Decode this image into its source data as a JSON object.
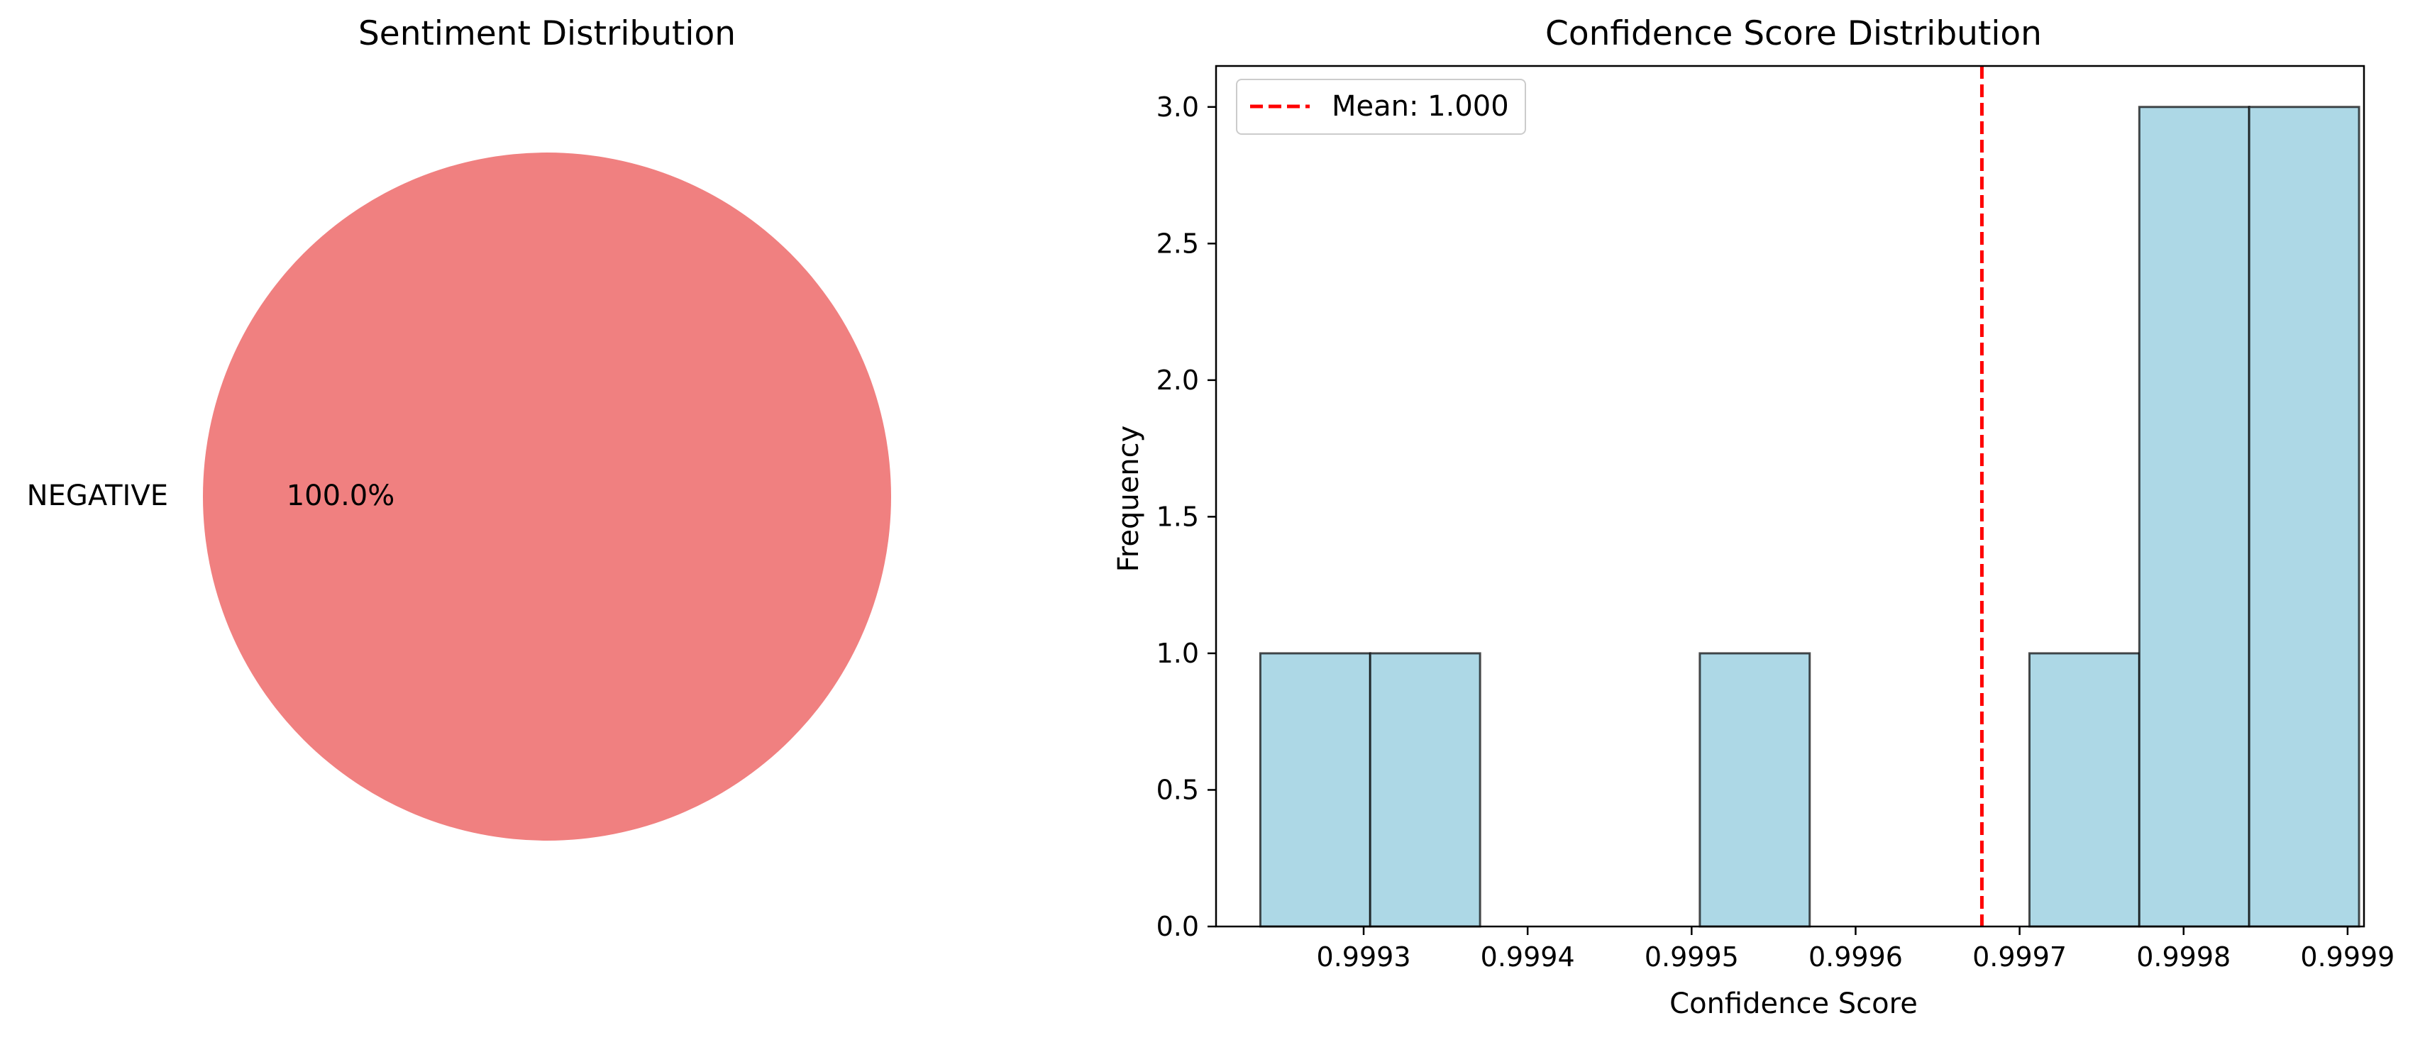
{
  "chart_data": [
    {
      "type": "pie",
      "title": "Sentiment Distribution",
      "slices": [
        {
          "label": "NEGATIVE",
          "value": 100.0,
          "pct_label": "100.0%",
          "color": "#f08080"
        }
      ]
    },
    {
      "type": "bar",
      "subtype": "histogram",
      "title": "Confidence Score Distribution",
      "xlabel": "Confidence Score",
      "ylabel": "Frequency",
      "xlim": [
        0.99921,
        0.99991
      ],
      "ylim": [
        0,
        3.15
      ],
      "x_ticks": [
        0.9993,
        0.9994,
        0.9995,
        0.9996,
        0.9997,
        0.9998,
        0.9999
      ],
      "x_tick_labels": [
        "0.9993",
        "0.9994",
        "0.9995",
        "0.9996",
        "0.9997",
        "0.9998",
        "0.9999"
      ],
      "y_ticks": [
        0.0,
        0.5,
        1.0,
        1.5,
        2.0,
        2.5,
        3.0
      ],
      "y_tick_labels": [
        "0.0",
        "0.5",
        "1.0",
        "1.5",
        "2.0",
        "2.5",
        "3.0"
      ],
      "bin_edges": [
        0.999237,
        0.999304,
        0.999371,
        0.999438,
        0.999505,
        0.999572,
        0.999639,
        0.999706,
        0.999773,
        0.99984,
        0.999907
      ],
      "counts": [
        1,
        1,
        0,
        0,
        1,
        0,
        0,
        1,
        3,
        3
      ],
      "bar_color": "#add8e6",
      "edge_color": "#000000",
      "mean_line": {
        "value": 0.999677,
        "label": "Mean: 1.000",
        "color": "#ff0000",
        "style": "dashed"
      },
      "legend": "top-left",
      "grid": false
    }
  ]
}
